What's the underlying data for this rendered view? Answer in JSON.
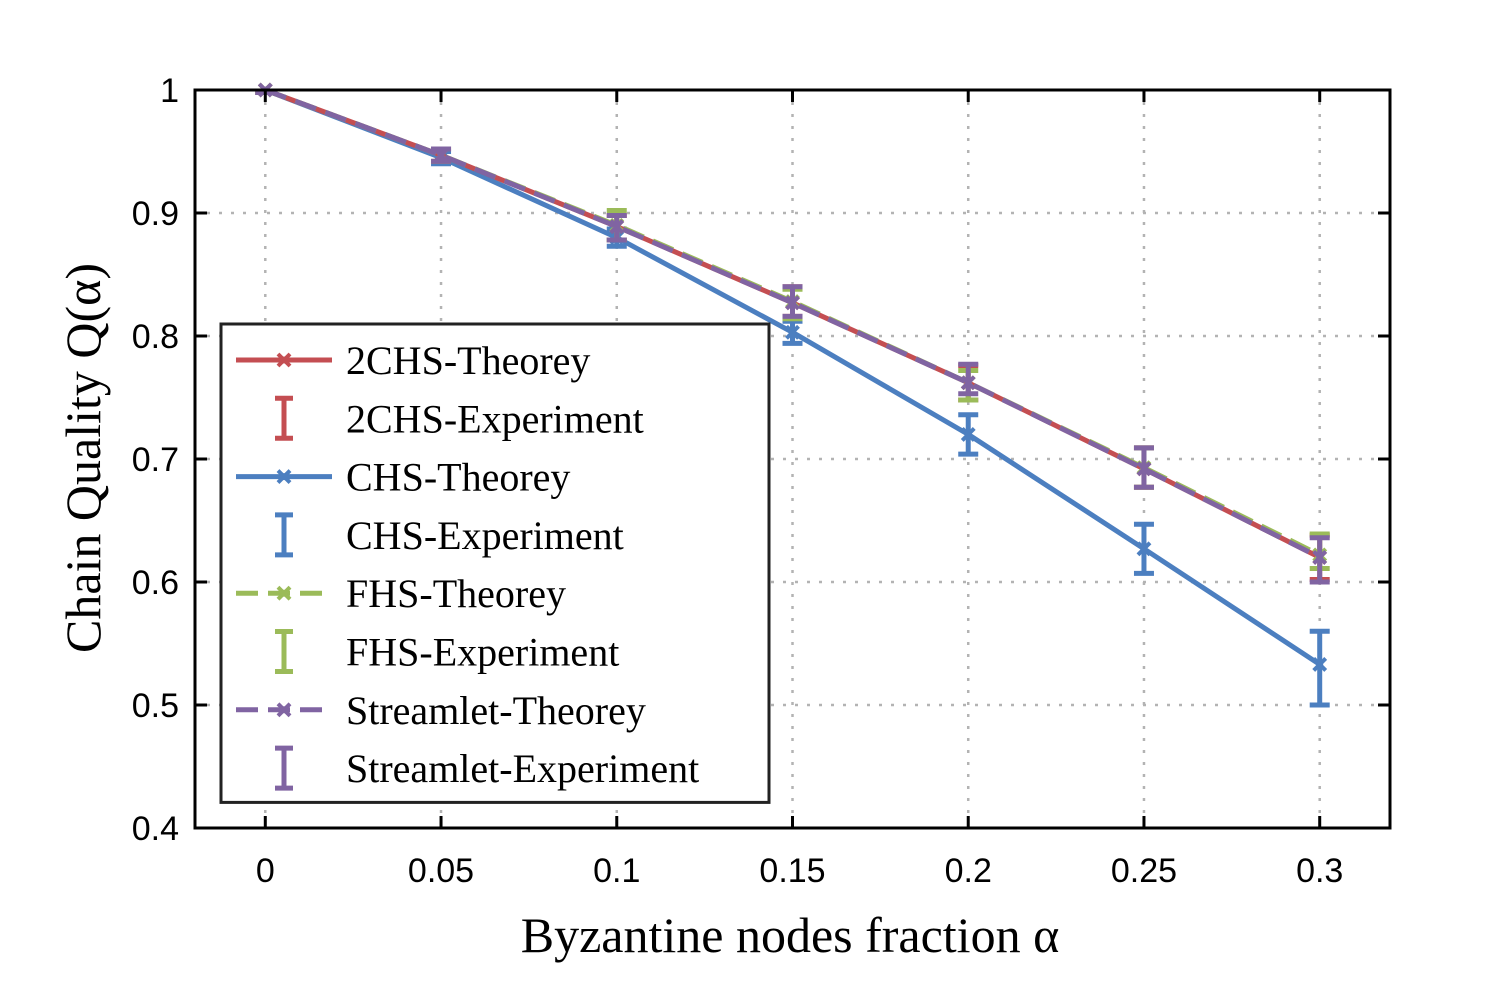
{
  "chart_data": {
    "type": "line",
    "title": "",
    "xlabel": "Byzantine nodes fraction α",
    "ylabel": "Chain Quality Q(α)",
    "x": [
      0,
      0.05,
      0.1,
      0.15,
      0.2,
      0.25,
      0.3
    ],
    "xtick_labels": [
      "0",
      "0.05",
      "0.1",
      "0.15",
      "0.2",
      "0.25",
      "0.3"
    ],
    "ytick_values": [
      0.4,
      0.5,
      0.6,
      0.7,
      0.8,
      0.9,
      1
    ],
    "ytick_labels": [
      "0.4",
      "0.5",
      "0.6",
      "0.7",
      "0.8",
      "0.9",
      "1"
    ],
    "xlim": [
      -0.02,
      0.32
    ],
    "ylim": [
      0.4,
      1.0
    ],
    "grid": true,
    "legend_position": "center-left",
    "series": [
      {
        "name": "2CHS-Theorey",
        "kind": "theory",
        "color": "#C44E52",
        "dash": "solid",
        "values": [
          1.0,
          0.947,
          0.889,
          0.827,
          0.762,
          0.692,
          0.62
        ]
      },
      {
        "name": "2CHS-Experiment",
        "kind": "experiment",
        "color": "#C44E52",
        "values": [
          1.0,
          0.947,
          0.888,
          0.828,
          0.762,
          0.693,
          0.62
        ],
        "errors": [
          0.002,
          0.005,
          0.01,
          0.012,
          0.014,
          0.016,
          0.018
        ]
      },
      {
        "name": "CHS-Theorey",
        "kind": "theory",
        "color": "#4C7FC0",
        "dash": "solid",
        "values": [
          1.0,
          0.945,
          0.88,
          0.803,
          0.72,
          0.627,
          0.533
        ]
      },
      {
        "name": "CHS-Experiment",
        "kind": "experiment",
        "color": "#4C7FC0",
        "values": [
          1.0,
          0.945,
          0.88,
          0.803,
          0.72,
          0.627,
          0.53
        ],
        "errors": [
          0.002,
          0.005,
          0.007,
          0.009,
          0.016,
          0.02,
          0.03
        ]
      },
      {
        "name": "FHS-Theorey",
        "kind": "theory",
        "color": "#9BBB59",
        "dash": "dashed",
        "values": [
          1.0,
          0.947,
          0.89,
          0.828,
          0.762,
          0.693,
          0.622
        ]
      },
      {
        "name": "FHS-Experiment",
        "kind": "experiment",
        "color": "#9BBB59",
        "values": [
          1.0,
          0.947,
          0.89,
          0.826,
          0.76,
          0.693,
          0.625
        ],
        "errors": [
          0.002,
          0.005,
          0.012,
          0.012,
          0.012,
          0.016,
          0.014
        ]
      },
      {
        "name": "Streamlet-Theorey",
        "kind": "theory",
        "color": "#8064A2",
        "dash": "dashed",
        "values": [
          1.0,
          0.947,
          0.889,
          0.827,
          0.762,
          0.692,
          0.62
        ]
      },
      {
        "name": "Streamlet-Experiment",
        "kind": "experiment",
        "color": "#8064A2",
        "values": [
          1.0,
          0.947,
          0.888,
          0.828,
          0.765,
          0.693,
          0.618
        ],
        "errors": [
          0.002,
          0.005,
          0.01,
          0.012,
          0.012,
          0.016,
          0.018
        ]
      }
    ]
  }
}
